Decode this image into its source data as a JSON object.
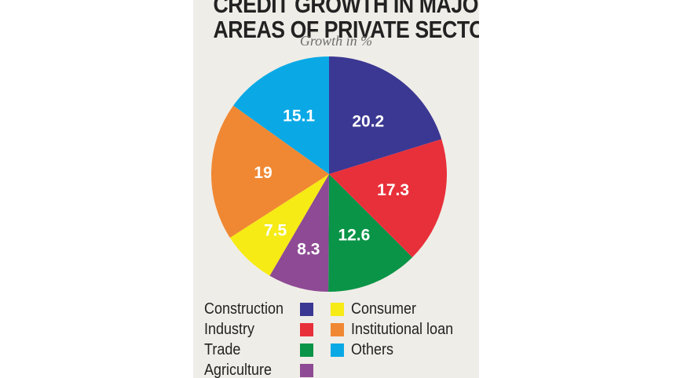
{
  "title_lines": [
    "CREDIT GROWTH IN MAJOR",
    "AREAS OF PRIVATE SECTOR"
  ],
  "subtitle": "Growth in %",
  "chart_data": {
    "type": "pie",
    "title": "CREDIT GROWTH IN MAJOR AREAS OF PRIVATE SECTOR",
    "subtitle": "Growth in %",
    "legend_position": "bottom",
    "slices": [
      {
        "name": "Construction",
        "value": 20.2,
        "label": "20.2",
        "color": "#3b3893"
      },
      {
        "name": "Industry",
        "value": 17.3,
        "label": "17.3",
        "color": "#e8303a"
      },
      {
        "name": "Trade",
        "value": 12.6,
        "label": "12.6",
        "color": "#0a9447"
      },
      {
        "name": "Agriculture",
        "value": 8.3,
        "label": "8.3",
        "color": "#8e4a94"
      },
      {
        "name": "Consumer",
        "value": 7.5,
        "label": "7.5",
        "color": "#f6eb14"
      },
      {
        "name": "Institutional loan",
        "value": 19,
        "label": "19",
        "color": "#f08833"
      },
      {
        "name": "Others",
        "value": 15.1,
        "label": "15.1",
        "color": "#0aa9e6"
      }
    ]
  }
}
